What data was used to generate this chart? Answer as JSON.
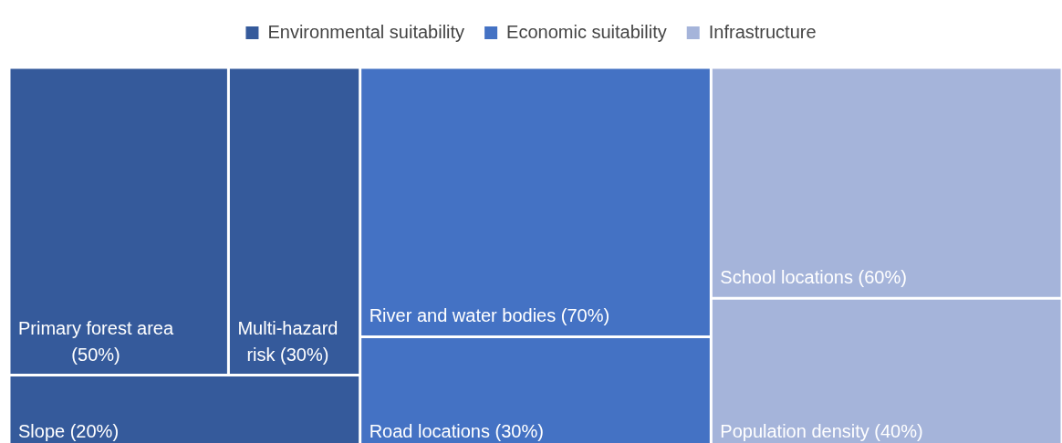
{
  "chart_data": {
    "type": "other",
    "legend": "top",
    "categories": [
      "Primary forest area",
      "Multi-hazard risk",
      "Slope",
      "River and water bodies",
      "Road locations",
      "School locations",
      "Population density"
    ],
    "series": [
      {
        "name": "Environmental suitability",
        "color": "#355a9b",
        "values": [
          50,
          30,
          20,
          null,
          null,
          null,
          null
        ],
        "value_labels": [
          "(50%)",
          "(30%)",
          "(20%)",
          null,
          null,
          null,
          null
        ]
      },
      {
        "name": "Economic suitability",
        "color": "#4472c4",
        "values": [
          null,
          null,
          null,
          70,
          30,
          null,
          null
        ],
        "value_labels": [
          null,
          null,
          null,
          "(70%)",
          "(30%)",
          null,
          null
        ]
      },
      {
        "name": "Infrastructure",
        "color": "#a5b4da",
        "values": [
          null,
          null,
          null,
          null,
          null,
          60,
          40
        ],
        "value_labels": [
          null,
          null,
          null,
          null,
          null,
          "(60%)",
          "(40%)"
        ]
      }
    ]
  }
}
